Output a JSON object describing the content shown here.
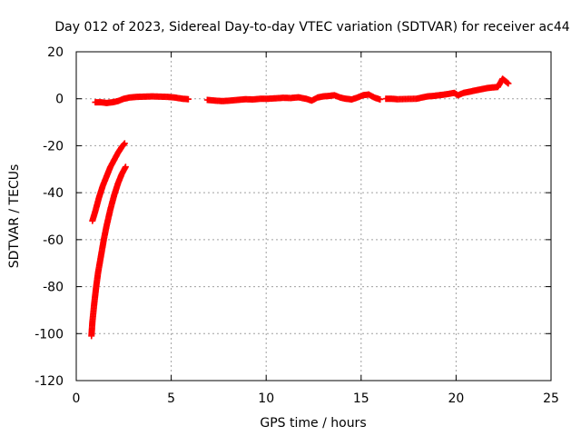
{
  "chart_data": {
    "type": "scatter",
    "title": "Day 012 of 2023, Sidereal Day-to-day VTEC variation (SDTVAR) for receiver ac44",
    "xlabel": "GPS time / hours",
    "ylabel": "SDTVAR / TECUs",
    "xlim": [
      0,
      25
    ],
    "ylim": [
      -120,
      20
    ],
    "xticks": [
      "0",
      "5",
      "10",
      "15",
      "20",
      "25"
    ],
    "yticks": [
      "20",
      "0",
      "-20",
      "-40",
      "-60",
      "-80",
      "-100",
      "-120"
    ],
    "grid": true,
    "marker": "+",
    "marker_color": "#ff0000",
    "series": [
      {
        "name": "",
        "points": [
          [
            0.85,
            -52
          ],
          [
            1.0,
            -48
          ],
          [
            1.2,
            -42
          ],
          [
            1.4,
            -37
          ],
          [
            1.6,
            -33
          ],
          [
            1.8,
            -29
          ],
          [
            2.0,
            -26
          ],
          [
            2.2,
            -23
          ],
          [
            2.4,
            -20.5
          ],
          [
            2.55,
            -19
          ],
          [
            0.8,
            -101
          ],
          [
            0.85,
            -95
          ],
          [
            0.95,
            -87
          ],
          [
            1.05,
            -80
          ],
          [
            1.15,
            -74
          ],
          [
            1.3,
            -67
          ],
          [
            1.45,
            -60
          ],
          [
            1.6,
            -54
          ],
          [
            1.8,
            -47
          ],
          [
            2.0,
            -41
          ],
          [
            2.2,
            -36
          ],
          [
            2.4,
            -32
          ],
          [
            2.6,
            -29
          ],
          [
            1.0,
            -1.5
          ],
          [
            1.3,
            -1.5
          ],
          [
            1.6,
            -1.8
          ],
          [
            1.9,
            -1.5
          ],
          [
            2.2,
            -1
          ],
          [
            2.5,
            0
          ],
          [
            2.8,
            0.5
          ],
          [
            3.2,
            0.8
          ],
          [
            3.6,
            0.9
          ],
          [
            4.0,
            1
          ],
          [
            4.4,
            0.9
          ],
          [
            4.8,
            0.8
          ],
          [
            5.2,
            0.5
          ],
          [
            5.6,
            0
          ],
          [
            5.9,
            -0.2
          ],
          [
            6.9,
            -0.5
          ],
          [
            7.3,
            -0.8
          ],
          [
            7.7,
            -1
          ],
          [
            8.1,
            -0.8
          ],
          [
            8.5,
            -0.5
          ],
          [
            8.9,
            -0.2
          ],
          [
            9.3,
            -0.3
          ],
          [
            9.7,
            0
          ],
          [
            10.1,
            0
          ],
          [
            10.5,
            0.2
          ],
          [
            10.9,
            0.4
          ],
          [
            11.3,
            0.3
          ],
          [
            11.7,
            0.6
          ],
          [
            12.1,
            0
          ],
          [
            12.4,
            -0.8
          ],
          [
            12.7,
            0.5
          ],
          [
            13.0,
            1
          ],
          [
            13.3,
            1.2
          ],
          [
            13.6,
            1.5
          ],
          [
            13.9,
            0.5
          ],
          [
            14.2,
            0
          ],
          [
            14.5,
            -0.3
          ],
          [
            14.8,
            0.5
          ],
          [
            15.1,
            1.5
          ],
          [
            15.4,
            1.8
          ],
          [
            15.7,
            0.5
          ],
          [
            16.0,
            -0.3
          ],
          [
            16.3,
            0
          ],
          [
            16.6,
            0
          ],
          [
            16.9,
            -0.2
          ],
          [
            17.9,
            0
          ],
          [
            18.2,
            0.5
          ],
          [
            18.5,
            1
          ],
          [
            18.8,
            1.2
          ],
          [
            19.1,
            1.5
          ],
          [
            19.4,
            1.8
          ],
          [
            19.7,
            2.2
          ],
          [
            19.9,
            2.5
          ],
          [
            20.1,
            1.5
          ],
          [
            20.4,
            2.5
          ],
          [
            20.7,
            3
          ],
          [
            21.0,
            3.5
          ],
          [
            21.3,
            4
          ],
          [
            21.6,
            4.5
          ],
          [
            21.9,
            4.8
          ],
          [
            22.2,
            5
          ],
          [
            22.45,
            8.5
          ],
          [
            22.6,
            7.5
          ],
          [
            22.75,
            6.5
          ],
          [
            22.9,
            5.5
          ]
        ]
      }
    ]
  }
}
